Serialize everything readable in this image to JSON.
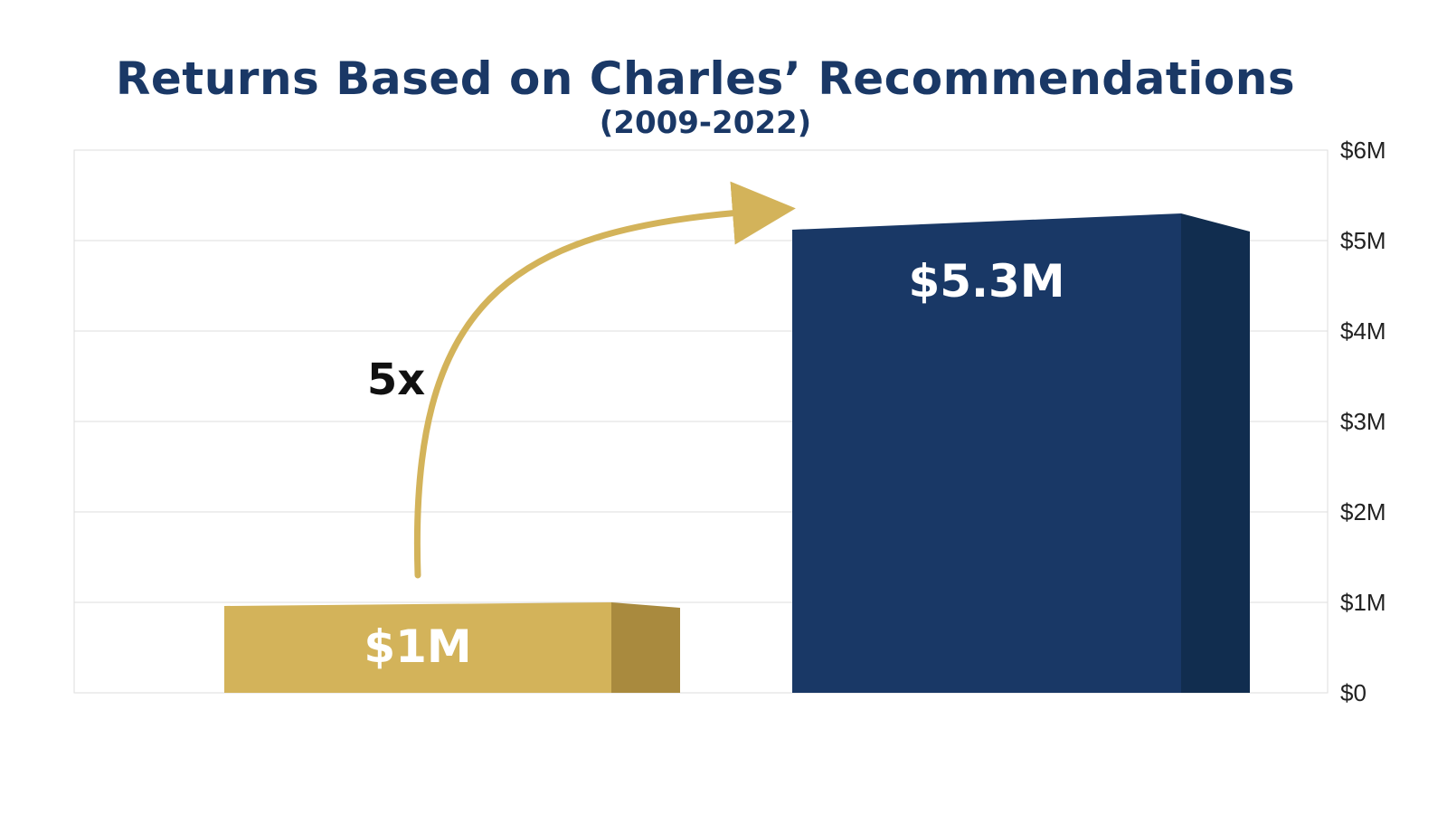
{
  "header": {
    "title": "Returns Based on Charles’ Recommendations",
    "subtitle": "(2009-2022)"
  },
  "chart_data": {
    "type": "bar",
    "title": "Returns Based on Charles’ Recommendations",
    "subtitle": "(2009-2022)",
    "categories": [
      "",
      ""
    ],
    "values": [
      1,
      5.3
    ],
    "data_labels": [
      "$1M",
      "$5.3M"
    ],
    "unit": "$M",
    "ylim": [
      0,
      6
    ],
    "y_ticks": [
      0,
      1,
      2,
      3,
      4,
      5,
      6
    ],
    "y_tick_labels": [
      "$0",
      "$1M",
      "$2M",
      "$3M",
      "$4M",
      "$5M",
      "$6M"
    ],
    "y_axis_side": "right",
    "grid": true,
    "colors": {
      "bar_front": [
        "#d3b35a",
        "#193866"
      ],
      "bar_side": [
        "#a98a3e",
        "#112d4f"
      ],
      "arrow": "#d3b35a",
      "title": "#1a3866",
      "grid": "#dddddd"
    },
    "annotation": {
      "text": "5x",
      "style": "curved-arrow-from-first-bar-to-second-bar"
    }
  }
}
